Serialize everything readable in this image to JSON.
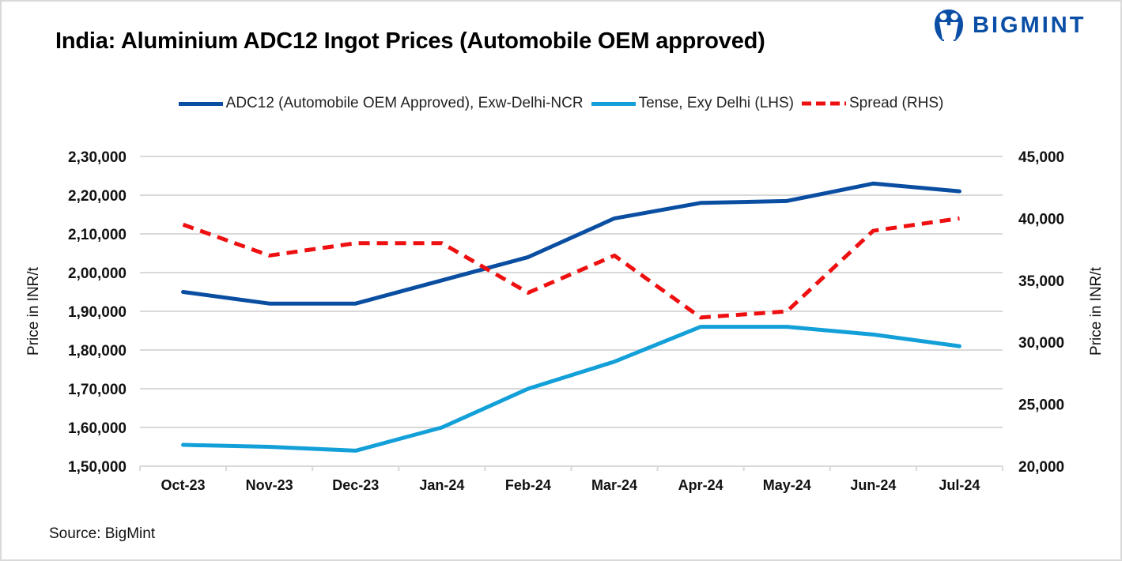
{
  "header": {
    "title": "India: Aluminium ADC12 Ingot Prices (Automobile OEM approved)",
    "logo_text": "BIGMINT",
    "logo_icon": "bigmint-people-icon"
  },
  "footer": {
    "source": "Source: BigMint"
  },
  "colors": {
    "adc12": "#0a4ea2",
    "tense": "#13a0d8",
    "spread": "#ee1010",
    "grid": "#d9d9d9",
    "brand": "#0a4ea6"
  },
  "chart_data": {
    "type": "line",
    "title": "India: Aluminium ADC12 Ingot Prices (Automobile OEM approved)",
    "categories": [
      "Oct-23",
      "Nov-23",
      "Dec-23",
      "Jan-24",
      "Feb-24",
      "Mar-24",
      "Apr-24",
      "May-24",
      "Jun-24",
      "Jul-24"
    ],
    "series": [
      {
        "name": "ADC12 (Automobile OEM Approved), Exw-Delhi-NCR",
        "axis": "left",
        "style": "solid",
        "color": "#0a4ea2",
        "values": [
          195000,
          192000,
          192000,
          198000,
          204000,
          214000,
          218000,
          218500,
          223000,
          221000
        ]
      },
      {
        "name": "Tense, Exy Delhi (LHS)",
        "axis": "left",
        "style": "solid",
        "color": "#13a0d8",
        "values": [
          155500,
          155000,
          154000,
          160000,
          170000,
          177000,
          186000,
          186000,
          184000,
          181000
        ]
      },
      {
        "name": "Spread (RHS)",
        "axis": "right",
        "style": "dashed",
        "color": "#ee1010",
        "values": [
          39500,
          37000,
          38000,
          38000,
          34000,
          37000,
          32000,
          32500,
          39000,
          40000
        ]
      }
    ],
    "ylabel": "Price in INR/t",
    "y2label": "Price in INR/t",
    "ylim": [
      150000,
      230000
    ],
    "y2lim": [
      20000,
      45000
    ],
    "yticks": [
      "1,50,000",
      "1,60,000",
      "1,70,000",
      "1,80,000",
      "1,90,000",
      "2,00,000",
      "2,10,000",
      "2,20,000",
      "2,30,000"
    ],
    "y2ticks": [
      "20,000",
      "25,000",
      "30,000",
      "35,000",
      "40,000",
      "45,000"
    ],
    "grid": true,
    "legend_position": "top-center"
  }
}
